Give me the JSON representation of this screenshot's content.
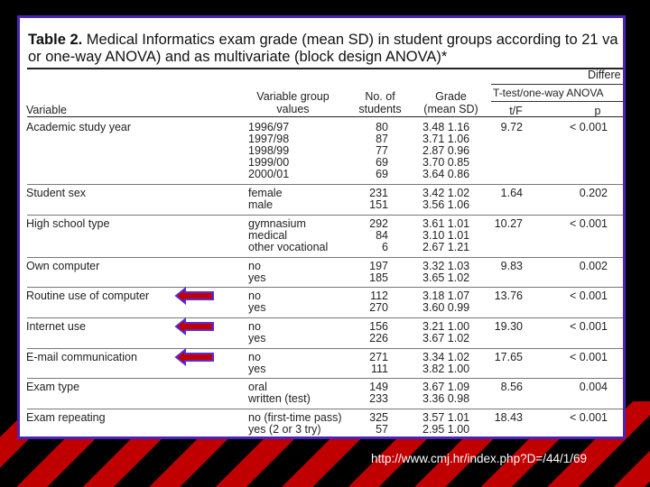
{
  "title": {
    "bold_part": "Table 2.",
    "rest_line1": " Medical Informatics exam grade (mean   SD) in student groups according to 21 va",
    "line2": "or one-way ANOVA) and as multivariate (block design ANOVA)*"
  },
  "headers": {
    "variable": "Variable",
    "group_line1": "Variable group",
    "group_line2": "values",
    "no_line1": "No. of",
    "no_line2": "students",
    "grade_line1": "Grade",
    "grade_line2": "(mean  SD)",
    "differ": "Differe",
    "ttest": "T-test/one-way ANOVA",
    "tf": "t/F",
    "p": "p"
  },
  "rows": [
    {
      "variable": "Academic study year",
      "groups": [
        "1996/97",
        "1997/98",
        "1998/99",
        "1999/00",
        "2000/01"
      ],
      "n": [
        "80",
        "87",
        "77",
        "69",
        "69"
      ],
      "grade": [
        "3.48 1.16",
        "3.71 1.06",
        "2.87 0.96",
        "3.70 0.85",
        "3.64 0.86"
      ],
      "tf": "9.72",
      "p": "< 0.001"
    },
    {
      "variable": "Student sex",
      "groups": [
        "female",
        "male"
      ],
      "n": [
        "231",
        "151"
      ],
      "grade": [
        "3.42 1.02",
        "3.56 1.06"
      ],
      "tf": "1.64",
      "p": "0.202"
    },
    {
      "variable": "High school type",
      "groups": [
        "gymnasium",
        "medical",
        "other vocational"
      ],
      "n": [
        "292",
        "84",
        "6"
      ],
      "grade": [
        "3.61 1.01",
        "3.10 1.01",
        "2.67 1.21"
      ],
      "tf": "10.27",
      "p": "< 0.001"
    },
    {
      "variable": "Own computer",
      "groups": [
        "no",
        "yes"
      ],
      "n": [
        "197",
        "185"
      ],
      "grade": [
        "3.32 1.03",
        "3.65 1.02"
      ],
      "tf": "9.83",
      "p": "0.002"
    },
    {
      "variable": "Routine use of computer",
      "groups": [
        "no",
        "yes"
      ],
      "n": [
        "112",
        "270"
      ],
      "grade": [
        "3.18 1.07",
        "3.60 0.99"
      ],
      "tf": "13.76",
      "p": "< 0.001"
    },
    {
      "variable": "Internet use",
      "groups": [
        "no",
        "yes"
      ],
      "n": [
        "156",
        "226"
      ],
      "grade": [
        "3.21 1.00",
        "3.67 1.02"
      ],
      "tf": "19.30",
      "p": "< 0.001"
    },
    {
      "variable": "E-mail communication",
      "groups": [
        "no",
        "yes"
      ],
      "n": [
        "271",
        "111"
      ],
      "grade": [
        "3.34 1.02",
        "3.82 1.00"
      ],
      "tf": "17.65",
      "p": "< 0.001"
    },
    {
      "variable": "Exam type",
      "groups": [
        "oral",
        "written (test)"
      ],
      "n": [
        "149",
        "233"
      ],
      "grade": [
        "3.67 1.09",
        "3.36 0.98"
      ],
      "tf": "8.56",
      "p": "0.004"
    },
    {
      "variable": "Exam repeating",
      "groups": [
        "no (first-time pass)",
        "yes (2 or 3 try)"
      ],
      "n": [
        "325",
        "57"
      ],
      "grade": [
        "3.57 1.01",
        "2.95 1.00"
      ],
      "tf": "18.43",
      "p": "< 0.001"
    }
  ],
  "arrows": {
    "color": "#c00000",
    "border_color": "#5a2bd6",
    "rows": [
      "Routine use of computer",
      "Internet use",
      "E-mail communication"
    ]
  },
  "footer": {
    "url": "http://www.cmj.hr/index.php?D=/44/1/69"
  },
  "colors": {
    "frame": "#4b23b8",
    "stripe": "#c00000",
    "background": "#000000"
  }
}
